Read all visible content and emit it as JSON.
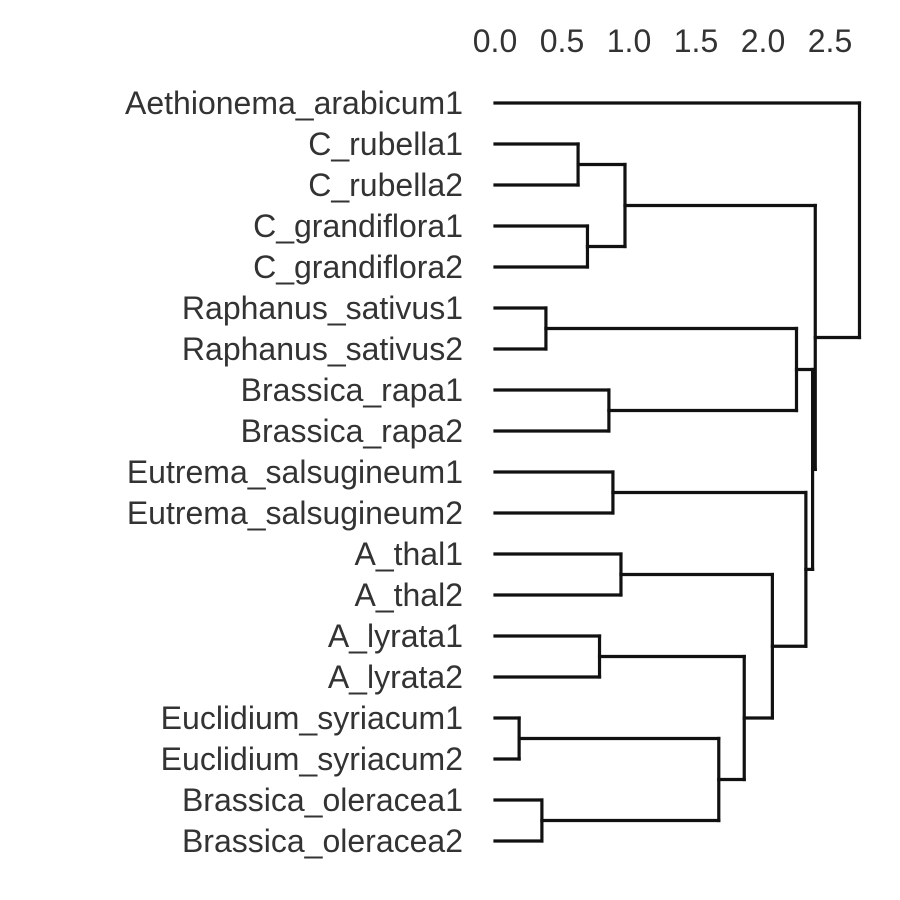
{
  "chart_data": {
    "type": "dendrogram",
    "orientation": "leaves-left",
    "axis": {
      "position": "top",
      "range": [
        0,
        2.6
      ],
      "ticks": [
        "0.0",
        "0.5",
        "1.0",
        "1.5",
        "2.0",
        "2.5"
      ],
      "label": ""
    },
    "grid": false,
    "legend": "none",
    "leaves": [
      "Aethionema_arabicum1",
      "C_rubella1",
      "C_rubella2",
      "C_grandiflora1",
      "C_grandiflora2",
      "Raphanus_sativus1",
      "Raphanus_sativus2",
      "Brassica_rapa1",
      "Brassica_rapa2",
      "Eutrema_salsugineum1",
      "Eutrema_salsugineum2",
      "A_thal1",
      "A_thal2",
      "A_lyrata1",
      "A_lyrata2",
      "Euclidium_syriacum1",
      "Euclidium_syriacum2",
      "Brassica_oleracea1",
      "Brassica_oleracea2"
    ],
    "merges": [
      {
        "id": "crub",
        "left": "C_rubella1",
        "right": "C_rubella2",
        "height": 0.62
      },
      {
        "id": "cgra",
        "left": "C_grandiflora1",
        "right": "C_grandiflora2",
        "height": 0.69
      },
      {
        "id": "caps",
        "left": "crub",
        "right": "cgra",
        "height": 0.97
      },
      {
        "id": "raph",
        "left": "Raphanus_sativus1",
        "right": "Raphanus_sativus2",
        "height": 0.38
      },
      {
        "id": "brap",
        "left": "Brassica_rapa1",
        "right": "Brassica_rapa2",
        "height": 0.85
      },
      {
        "id": "rapbr",
        "left": "raph",
        "right": "brap",
        "height": 2.25
      },
      {
        "id": "eutr",
        "left": "Eutrema_salsugineum1",
        "right": "Eutrema_salsugineum2",
        "height": 0.88
      },
      {
        "id": "atha",
        "left": "A_thal1",
        "right": "A_thal2",
        "height": 0.94
      },
      {
        "id": "alyr",
        "left": "A_lyrata1",
        "right": "A_lyrata2",
        "height": 0.78
      },
      {
        "id": "eucl",
        "left": "Euclidium_syriacum1",
        "right": "Euclidium_syriacum2",
        "height": 0.18
      },
      {
        "id": "bole",
        "left": "Brassica_oleracea1",
        "right": "Brassica_oleracea2",
        "height": 0.35
      },
      {
        "id": "euboles",
        "left": "eucl",
        "right": "bole",
        "height": 1.67
      },
      {
        "id": "lyrclade",
        "left": "alyr",
        "right": "euboles",
        "height": 1.86
      },
      {
        "id": "thalclade",
        "left": "atha",
        "right": "lyrclade",
        "height": 2.07
      },
      {
        "id": "eutclade",
        "left": "eutr",
        "right": "thalclade",
        "height": 2.32
      },
      {
        "id": "core",
        "left": "rapbr",
        "right": "eutclade",
        "height": 2.37
      },
      {
        "id": "brass",
        "left": "caps",
        "right": "core",
        "height": 2.39
      },
      {
        "id": "root",
        "left": "Aethionema_arabicum1",
        "right": "brass",
        "height": 2.72
      }
    ]
  }
}
